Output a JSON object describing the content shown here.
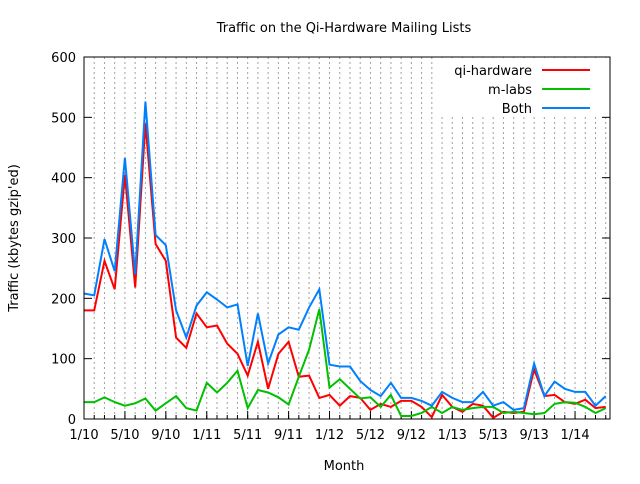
{
  "chart_data": {
    "type": "line",
    "title": "Traffic on the Qi-Hardware Mailing Lists",
    "xlabel": "Month",
    "ylabel": "Traffic (kbytes gzip'ed)",
    "ylim": [
      0,
      600
    ],
    "yticks": [
      0,
      100,
      200,
      300,
      400,
      500,
      600
    ],
    "x_start": "1/10",
    "x_step": "1 month",
    "xtick_labels": [
      "1/10",
      "5/10",
      "9/10",
      "1/11",
      "5/11",
      "9/11",
      "1/12",
      "5/12",
      "9/12",
      "1/13",
      "5/13",
      "9/13",
      "1/14"
    ],
    "xtick_every_months": 4,
    "grid": "vertical dotted, monthly",
    "legend_position": "top-right",
    "series": [
      {
        "name": "qi-hardware",
        "color": "#ff0000",
        "values": [
          180,
          180,
          262,
          215,
          405,
          218,
          490,
          290,
          262,
          135,
          118,
          175,
          152,
          155,
          125,
          108,
          72,
          128,
          50,
          108,
          128,
          70,
          72,
          35,
          40,
          22,
          38,
          35,
          15,
          25,
          20,
          30,
          30,
          20,
          3,
          40,
          20,
          12,
          25,
          22,
          2,
          12,
          10,
          12,
          82,
          38,
          40,
          28,
          25,
          32,
          18,
          20
        ]
      },
      {
        "name": "m-labs",
        "color": "#00c000",
        "values": [
          28,
          28,
          36,
          28,
          22,
          26,
          34,
          14,
          26,
          38,
          18,
          14,
          60,
          44,
          60,
          80,
          18,
          48,
          44,
          36,
          24,
          70,
          115,
          182,
          52,
          66,
          50,
          34,
          36,
          20,
          40,
          5,
          5,
          10,
          20,
          10,
          20,
          15,
          18,
          20,
          20,
          10,
          12,
          10,
          8,
          10,
          25,
          28,
          27,
          20,
          10,
          18
        ]
      },
      {
        "name": "Both",
        "color": "#0080ff",
        "values": [
          208,
          205,
          298,
          245,
          433,
          240,
          526,
          305,
          288,
          180,
          135,
          188,
          210,
          198,
          185,
          190,
          88,
          175,
          92,
          140,
          152,
          148,
          185,
          215,
          90,
          87,
          87,
          63,
          48,
          38,
          60,
          35,
          35,
          30,
          22,
          45,
          35,
          28,
          28,
          45,
          22,
          28,
          15,
          18,
          92,
          38,
          62,
          50,
          45,
          45,
          22,
          38
        ]
      }
    ]
  }
}
